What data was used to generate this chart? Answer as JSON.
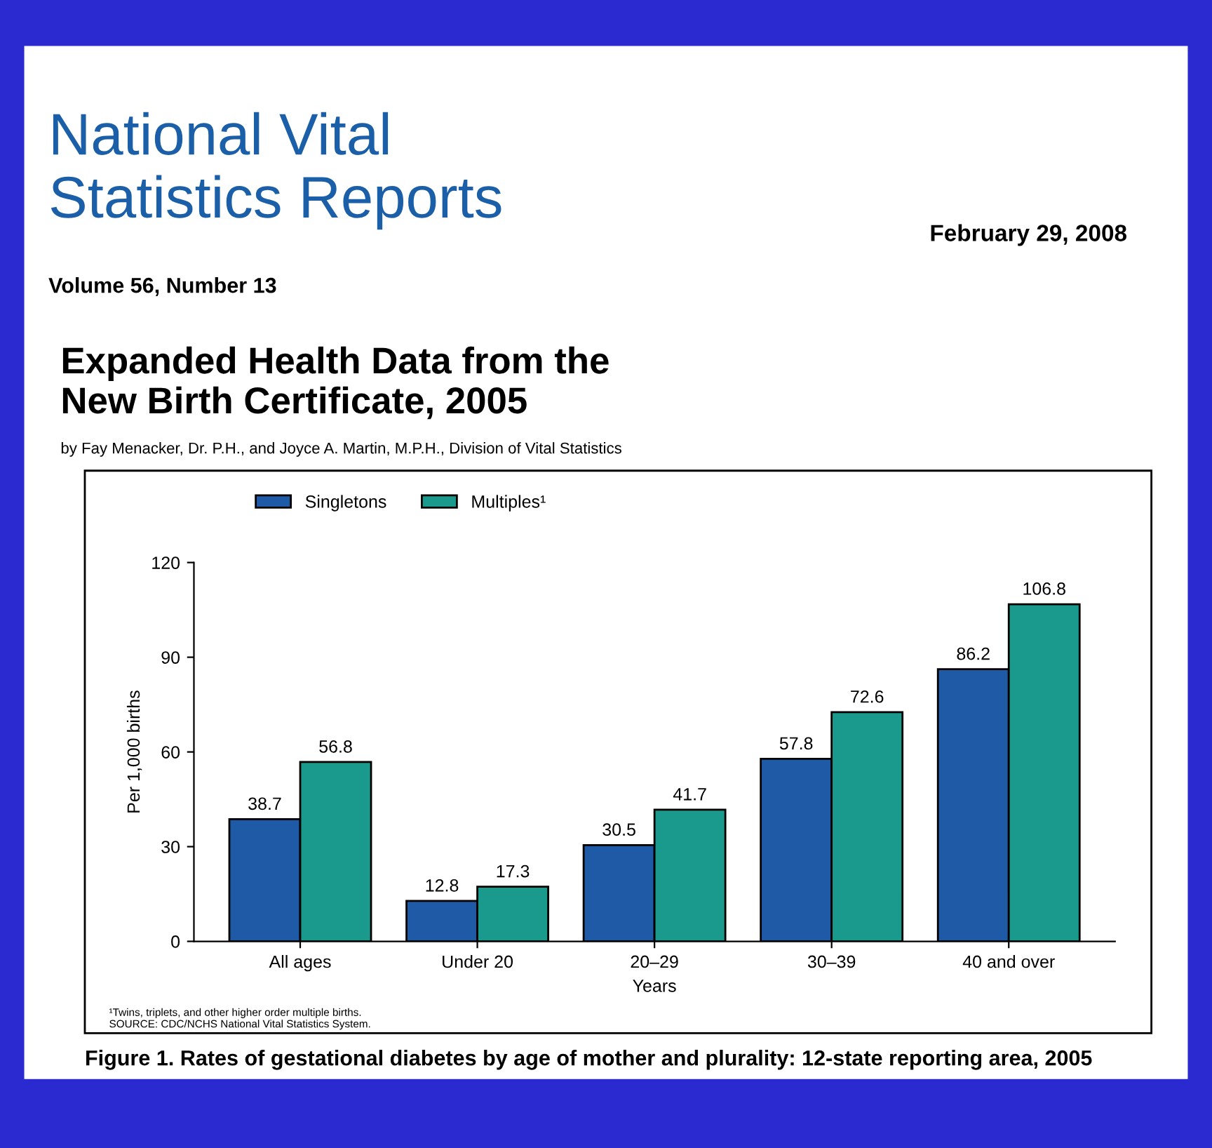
{
  "chart_data": {
    "type": "bar",
    "title": "Expanded Health Data from the\nNew Birth Certificate, 2005",
    "subtitle": "by Fay Menacker, Dr. P.H., and Joyce A. Martin, M.P.H., Division of Vital Statistics",
    "annotations": [
      "National Vital\nStatistics Reports",
      "February 29, 2008",
      "Volume 56, Number 13",
      "¹Twins, triplets, and other higher order multiple births.\nSOURCE: CDC/NCHS National Vital Statistics System.",
      "Figure 1. Rates of gestational diabetes by age of mother and plurality: 12-state reporting area, 2005"
    ],
    "xlabel": "Years",
    "ylabel": "Per 1,000 births",
    "categories": [
      "All ages",
      "Under 20",
      "20–29",
      "30–39",
      "40 and over"
    ],
    "series": [
      {
        "name": "Singletons",
        "color": "#1f5aa6",
        "values": [
          38.7,
          12.8,
          30.5,
          57.8,
          86.2
        ]
      },
      {
        "name": "Multiples¹",
        "color": "#1a9a8c",
        "values": [
          56.8,
          17.3,
          41.7,
          72.6,
          106.8
        ]
      }
    ],
    "ylim": [
      0,
      120
    ],
    "yticks": [
      0,
      30,
      60,
      90,
      120
    ],
    "data_labels": true,
    "grid": false,
    "legend": "top left"
  }
}
